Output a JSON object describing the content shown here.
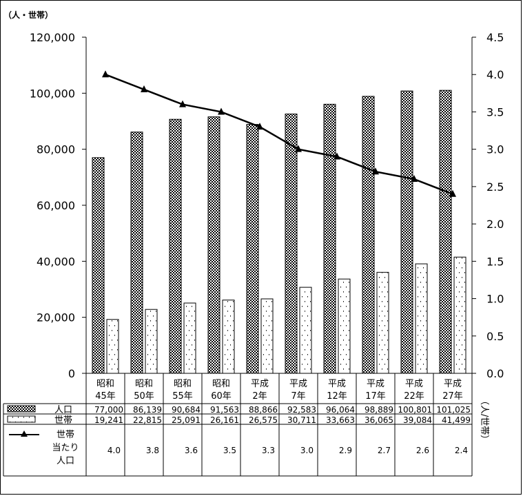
{
  "chart_data": {
    "type": "bar",
    "left_axis_unit": "（人・世帯）",
    "right_axis_unit": "（人/世帯）",
    "categories": [
      [
        "昭和",
        "45年"
      ],
      [
        "昭和",
        "50年"
      ],
      [
        "昭和",
        "55年"
      ],
      [
        "昭和",
        "60年"
      ],
      [
        "平成",
        "2年"
      ],
      [
        "平成",
        "7年"
      ],
      [
        "平成",
        "12年"
      ],
      [
        "平成",
        "17年"
      ],
      [
        "平成",
        "22年"
      ],
      [
        "平成",
        "27年"
      ]
    ],
    "left_axis": {
      "ylim": [
        0,
        120000
      ],
      "ticks": [
        "0",
        "20,000",
        "40,000",
        "60,000",
        "80,000",
        "100,000",
        "120,000"
      ]
    },
    "right_axis": {
      "ylim": [
        0,
        4.5
      ],
      "ticks": [
        "0.0",
        "0.5",
        "1.0",
        "1.5",
        "2.0",
        "2.5",
        "3.0",
        "3.5",
        "4.0",
        "4.5"
      ]
    },
    "series": [
      {
        "name": "人口",
        "kind": "bar",
        "pattern": "checker",
        "axis": "left",
        "values": [
          77000,
          86139,
          90684,
          91563,
          88866,
          92583,
          96064,
          98889,
          100801,
          101025
        ],
        "labels": [
          "77,000",
          "86,139",
          "90,684",
          "91,563",
          "88,866",
          "92,583",
          "96,064",
          "98,889",
          "100,801",
          "101,025"
        ]
      },
      {
        "name": "世帯",
        "kind": "bar",
        "pattern": "dots",
        "axis": "left",
        "values": [
          19241,
          22815,
          25091,
          26161,
          26575,
          30711,
          33663,
          36065,
          39084,
          41499
        ],
        "labels": [
          "19,241",
          "22,815",
          "25,091",
          "26,161",
          "26,575",
          "30,711",
          "33,663",
          "36,065",
          "39,084",
          "41,499"
        ]
      },
      {
        "name": [
          "世帯",
          "当たり",
          "人口"
        ],
        "kind": "line",
        "marker": "triangle",
        "axis": "right",
        "values": [
          4.0,
          3.8,
          3.6,
          3.5,
          3.3,
          3.0,
          2.9,
          2.7,
          2.6,
          2.4
        ],
        "labels": [
          "4.0",
          "3.8",
          "3.6",
          "3.5",
          "3.3",
          "3.0",
          "2.9",
          "2.7",
          "2.6",
          "2.4"
        ]
      }
    ],
    "grid": false,
    "legend": "data-table-below"
  }
}
